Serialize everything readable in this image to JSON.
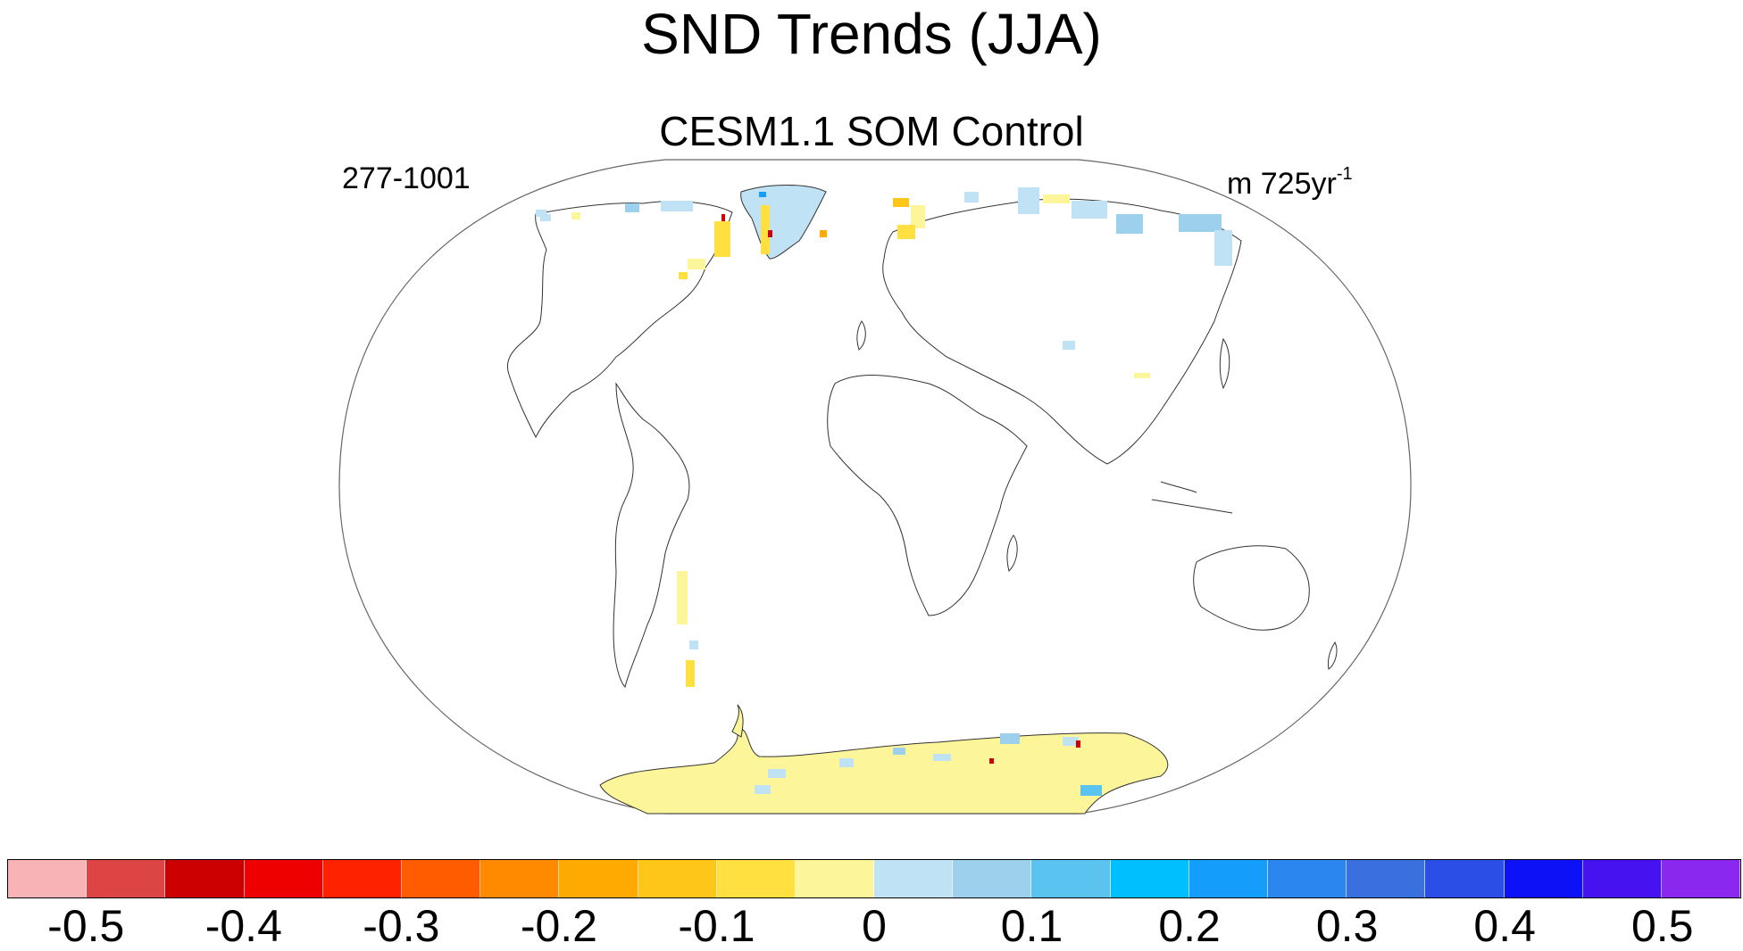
{
  "title": "SND Trends (JJA)",
  "subtitle": "CESM1.1 SOM Control",
  "left_string": "277-1001",
  "right_string": {
    "base": "m 725yr",
    "exponent": "-1"
  },
  "map": {
    "projection": "Winkel-tripel / Robinson-like",
    "land_outline_color": "#333333",
    "missing_fill": "#ffffff"
  },
  "colorbar": {
    "labels": [
      "-0.5",
      "-0.4",
      "-0.3",
      "-0.2",
      "-0.1",
      "0",
      "0.1",
      "0.2",
      "0.3",
      "0.4",
      "0.5"
    ],
    "colors": [
      "#f7b3b5",
      "#dd4444",
      "#cc0000",
      "#ee0000",
      "#ff2200",
      "#ff5c00",
      "#ff8a00",
      "#ffaa00",
      "#ffc61a",
      "#ffe040",
      "#fdf59a",
      "#bfe2f4",
      "#9dd0ec",
      "#5bc3f0",
      "#00bfff",
      "#149dfa",
      "#2c86f0",
      "#3a6fe0",
      "#2b4fe6",
      "#0c12f5",
      "#4612f0",
      "#8a28f0"
    ]
  }
}
